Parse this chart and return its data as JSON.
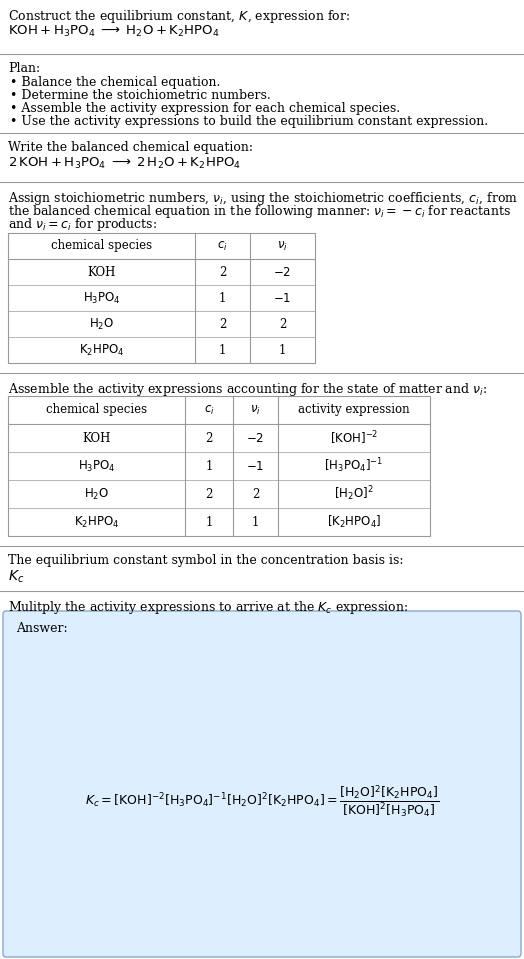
{
  "title_line1": "Construct the equilibrium constant, $K$, expression for:",
  "title_line2": "$\\mathrm{KOH + H_3PO_4 \\;\\longrightarrow\\; H_2O + K_2HPO_4}$",
  "plan_header": "Plan:",
  "plan_items": [
    "• Balance the chemical equation.",
    "• Determine the stoichiometric numbers.",
    "• Assemble the activity expression for each chemical species.",
    "• Use the activity expressions to build the equilibrium constant expression."
  ],
  "balanced_header": "Write the balanced chemical equation:",
  "balanced_eq": "$\\mathrm{2\\,KOH + H_3PO_4 \\;\\longrightarrow\\; 2\\,H_2O + K_2HPO_4}$",
  "stoich_header_l1": "Assign stoichiometric numbers, $\\nu_i$, using the stoichiometric coefficients, $c_i$, from",
  "stoich_header_l2": "the balanced chemical equation in the following manner: $\\nu_i = -c_i$ for reactants",
  "stoich_header_l3": "and $\\nu_i = c_i$ for products:",
  "table1_cols": [
    "chemical species",
    "$c_i$",
    "$\\nu_i$"
  ],
  "table1_rows": [
    [
      "KOH",
      "2",
      "$-2$"
    ],
    [
      "$\\mathrm{H_3PO_4}$",
      "1",
      "$-1$"
    ],
    [
      "$\\mathrm{H_2O}$",
      "2",
      "2"
    ],
    [
      "$\\mathrm{K_2HPO_4}$",
      "1",
      "1"
    ]
  ],
  "assemble_header": "Assemble the activity expressions accounting for the state of matter and $\\nu_i$:",
  "table2_cols": [
    "chemical species",
    "$c_i$",
    "$\\nu_i$",
    "activity expression"
  ],
  "table2_rows": [
    [
      "KOH",
      "2",
      "$-2$",
      "$[\\mathrm{KOH}]^{-2}$"
    ],
    [
      "$\\mathrm{H_3PO_4}$",
      "1",
      "$-1$",
      "$[\\mathrm{H_3PO_4}]^{-1}$"
    ],
    [
      "$\\mathrm{H_2O}$",
      "2",
      "2",
      "$[\\mathrm{H_2O}]^{2}$"
    ],
    [
      "$\\mathrm{K_2HPO_4}$",
      "1",
      "1",
      "$[\\mathrm{K_2HPO_4}]$"
    ]
  ],
  "kc_header": "The equilibrium constant symbol in the concentration basis is:",
  "kc_symbol": "$K_c$",
  "multiply_header": "Mulitply the activity expressions to arrive at the $K_c$ expression:",
  "answer_label": "Answer:",
  "bg_color": "#ffffff",
  "table_line_color": "#999999",
  "answer_box_color": "#ddeeff",
  "answer_box_border": "#88aacc",
  "text_color": "#000000",
  "font_size": 9.0,
  "small_font": 8.5
}
